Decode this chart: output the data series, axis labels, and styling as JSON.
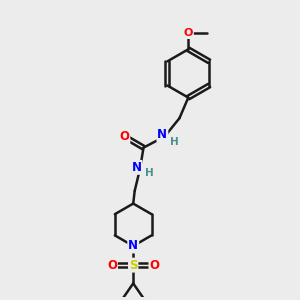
{
  "bg_color": "#ececec",
  "bond_color": "#1a1a1a",
  "bond_width": 1.8,
  "atom_colors": {
    "O": "#ff0000",
    "N": "#0000ff",
    "S": "#cccc00",
    "C": "#1a1a1a",
    "H": "#4a9090"
  },
  "figsize": [
    3.0,
    3.0
  ],
  "dpi": 100
}
